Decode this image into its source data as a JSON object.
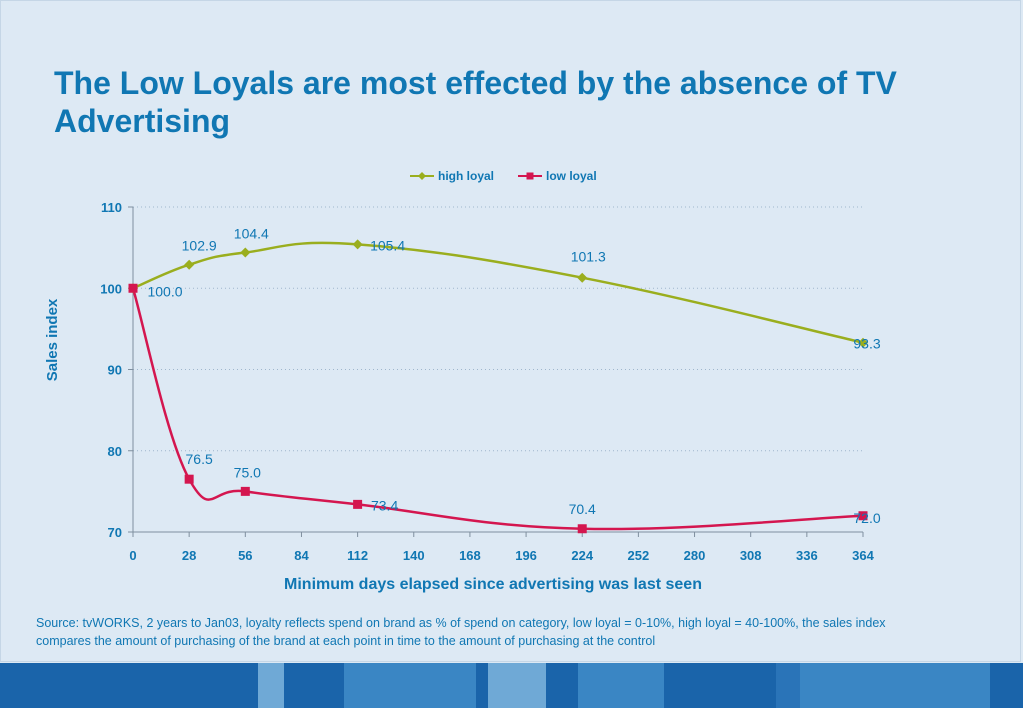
{
  "title": "The Low Loyals are most effected by the absence of TV Advertising",
  "source": "Source: tvWORKS, 2 years to Jan03, loyalty reflects spend on brand as % of spend on category, low loyal = 0-10%, high loyal = 40-100%, the sales index compares the amount of purchasing of the brand at each point in time to the amount of purchasing at the control",
  "colors": {
    "title": "#1077b3",
    "high_loyal": "#9aae1e",
    "low_loyal": "#d4164f",
    "background": "#dde9f4"
  },
  "chart_data": {
    "type": "line",
    "xlabel": "Minimum days elapsed since advertising was last seen",
    "ylabel": "Sales index",
    "xlim": [
      0,
      364
    ],
    "ylim": [
      70,
      110
    ],
    "xticks": [
      0,
      28,
      56,
      84,
      112,
      140,
      168,
      196,
      224,
      252,
      280,
      308,
      336,
      364
    ],
    "yticks": [
      70,
      80,
      90,
      100,
      110
    ],
    "grid": "horizontal dotted",
    "legend_position": "top-center",
    "series": [
      {
        "name": "high loyal",
        "color": "#9aae1e",
        "marker": "diamond",
        "x": [
          0,
          28,
          56,
          112,
          224,
          364
        ],
        "values": [
          100.0,
          102.9,
          104.4,
          105.4,
          101.3,
          93.3
        ],
        "labels": [
          "",
          "102.9",
          "104.4",
          "105.4",
          "101.3",
          "93.3"
        ]
      },
      {
        "name": "low loyal",
        "color": "#d4164f",
        "marker": "square",
        "x": [
          0,
          28,
          56,
          112,
          224,
          364
        ],
        "values": [
          100.0,
          76.5,
          75.0,
          73.4,
          70.4,
          72.0
        ],
        "labels": [
          "100.0",
          "76.5",
          "75.0",
          "73.4",
          "70.4",
          "72.0"
        ]
      }
    ]
  }
}
